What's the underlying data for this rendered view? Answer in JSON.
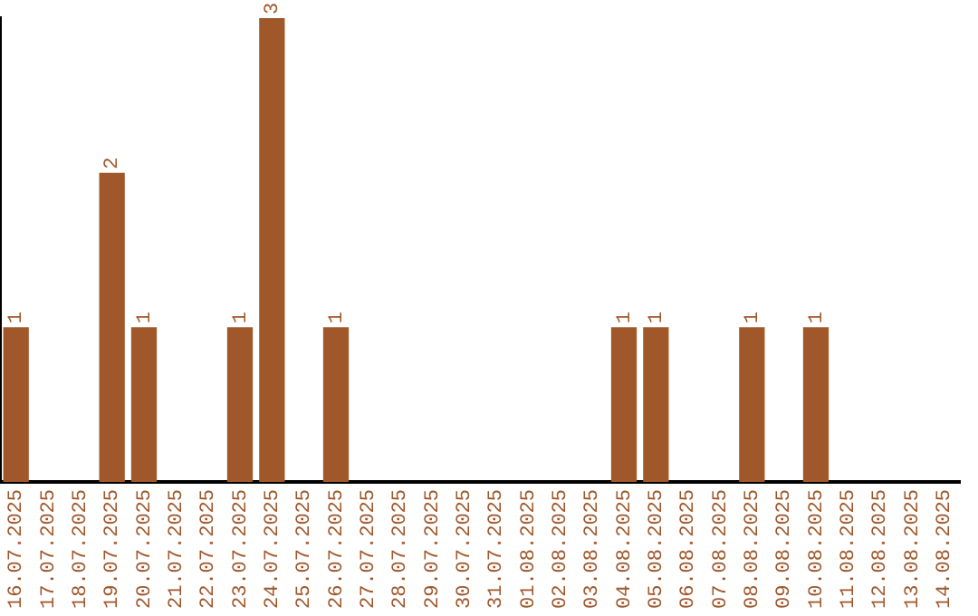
{
  "chart_data": {
    "type": "bar",
    "categories": [
      "16.07.2025",
      "17.07.2025",
      "18.07.2025",
      "19.07.2025",
      "20.07.2025",
      "21.07.2025",
      "22.07.2025",
      "23.07.2025",
      "24.07.2025",
      "25.07.2025",
      "26.07.2025",
      "27.07.2025",
      "28.07.2025",
      "29.07.2025",
      "30.07.2025",
      "31.07.2025",
      "01.08.2025",
      "02.08.2025",
      "03.08.2025",
      "04.08.2025",
      "05.08.2025",
      "06.08.2025",
      "07.08.2025",
      "08.08.2025",
      "09.08.2025",
      "10.08.2025",
      "11.08.2025",
      "12.08.2025",
      "13.08.2025",
      "14.08.2025"
    ],
    "values": [
      1,
      null,
      null,
      2,
      1,
      null,
      null,
      1,
      3,
      null,
      1,
      null,
      null,
      null,
      null,
      null,
      null,
      null,
      null,
      1,
      1,
      null,
      null,
      1,
      null,
      1,
      null,
      null,
      null,
      null
    ],
    "color": "#a0572a",
    "ylim": [
      0,
      3
    ],
    "tick_labels": "x",
    "data_labels": true,
    "grid": false,
    "legend": false
  }
}
